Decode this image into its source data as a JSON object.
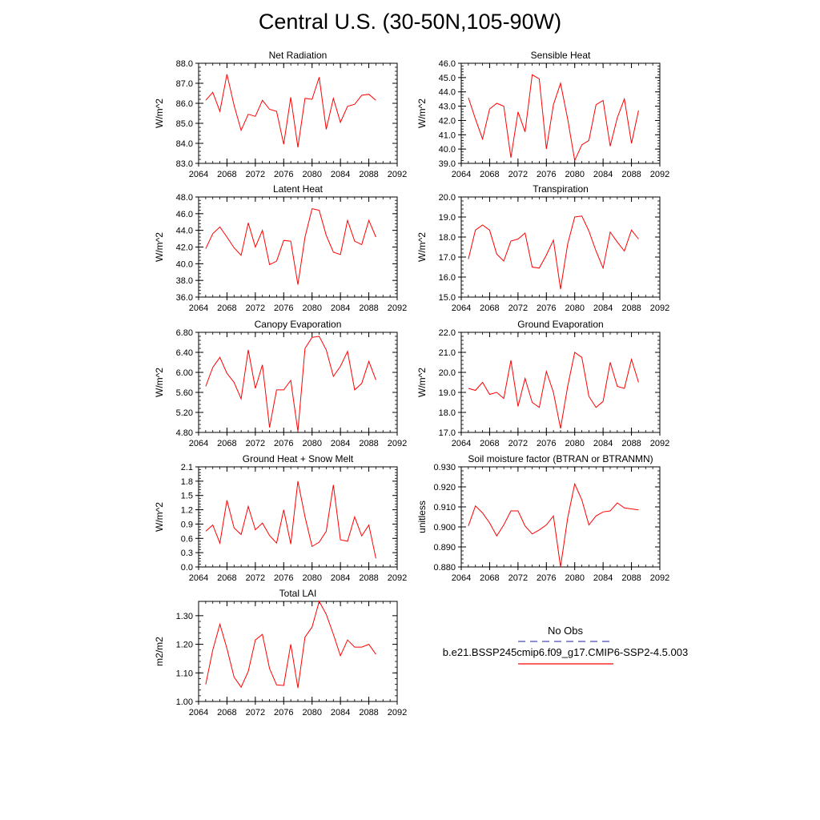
{
  "title": "Central U.S. (30-50N,105-90W)",
  "legend": {
    "items": [
      {
        "label": "No Obs",
        "color": "#4b4bb4",
        "dash": true
      },
      {
        "label": "b.e21.BSSP245cmip6.f09_g17.CMIP6-SSP2-4.5.003",
        "color": "#ff0000",
        "dash": false
      }
    ]
  },
  "chart_data": [
    {
      "type": "line",
      "title": "Net Radiation",
      "ylabel": "W/m^2",
      "xlim": [
        2064,
        2092
      ],
      "ylim": [
        83.0,
        88.0
      ],
      "yticks": [
        83.0,
        84.0,
        85.0,
        86.0,
        87.0,
        88.0
      ],
      "ytick_labels": [
        "83.0",
        "84.0",
        "85.0",
        "86.0",
        "87.0",
        "88.0"
      ],
      "xticks": [
        2064,
        2068,
        2072,
        2076,
        2080,
        2084,
        2088,
        2092
      ],
      "x": [
        2065,
        2066,
        2067,
        2068,
        2069,
        2070,
        2071,
        2072,
        2073,
        2074,
        2075,
        2076,
        2077,
        2078,
        2079,
        2080,
        2081,
        2082,
        2083,
        2084,
        2085,
        2086,
        2087,
        2088,
        2089
      ],
      "series": [
        {
          "values": [
            86.15,
            86.55,
            85.6,
            87.45,
            85.9,
            84.65,
            85.45,
            85.35,
            86.15,
            85.7,
            85.6,
            83.95,
            86.3,
            83.8,
            86.25,
            86.2,
            87.3,
            84.7,
            86.25,
            85.05,
            85.85,
            85.95,
            86.4,
            86.45,
            86.15
          ],
          "color": "#ff0000"
        }
      ]
    },
    {
      "type": "line",
      "title": "Sensible Heat",
      "ylabel": "W/m^2",
      "xlim": [
        2064,
        2092
      ],
      "ylim": [
        39.0,
        46.0
      ],
      "yticks": [
        39.0,
        40.0,
        41.0,
        42.0,
        43.0,
        44.0,
        45.0,
        46.0
      ],
      "ytick_labels": [
        "39.0",
        "40.0",
        "41.0",
        "42.0",
        "43.0",
        "44.0",
        "45.0",
        "46.0"
      ],
      "xticks": [
        2064,
        2068,
        2072,
        2076,
        2080,
        2084,
        2088,
        2092
      ],
      "x": [
        2065,
        2066,
        2067,
        2068,
        2069,
        2070,
        2071,
        2072,
        2073,
        2074,
        2075,
        2076,
        2077,
        2078,
        2079,
        2080,
        2081,
        2082,
        2083,
        2084,
        2085,
        2086,
        2087,
        2088,
        2089
      ],
      "series": [
        {
          "values": [
            43.6,
            42.1,
            40.7,
            42.8,
            43.2,
            43.0,
            39.4,
            42.6,
            41.2,
            45.2,
            44.9,
            40.0,
            43.1,
            44.6,
            42.1,
            39.2,
            40.3,
            40.6,
            43.1,
            43.4,
            40.2,
            42.2,
            43.5,
            40.4,
            42.7
          ],
          "color": "#ff0000"
        }
      ]
    },
    {
      "type": "line",
      "title": "Latent Heat",
      "ylabel": "W/m^2",
      "xlim": [
        2064,
        2092
      ],
      "ylim": [
        36.0,
        48.0
      ],
      "yticks": [
        36.0,
        38.0,
        40.0,
        42.0,
        44.0,
        46.0,
        48.0
      ],
      "ytick_labels": [
        "36.0",
        "38.0",
        "40.0",
        "42.0",
        "44.0",
        "46.0",
        "48.0"
      ],
      "xticks": [
        2064,
        2068,
        2072,
        2076,
        2080,
        2084,
        2088,
        2092
      ],
      "x": [
        2065,
        2066,
        2067,
        2068,
        2069,
        2070,
        2071,
        2072,
        2073,
        2074,
        2075,
        2076,
        2077,
        2078,
        2079,
        2080,
        2081,
        2082,
        2083,
        2084,
        2085,
        2086,
        2087,
        2088,
        2089
      ],
      "series": [
        {
          "values": [
            41.8,
            43.6,
            44.4,
            43.2,
            41.9,
            41.0,
            44.9,
            42.0,
            44.0,
            39.9,
            40.3,
            42.8,
            42.7,
            37.5,
            43.2,
            46.6,
            46.4,
            43.4,
            41.4,
            41.1,
            45.2,
            42.7,
            42.3,
            45.2,
            43.2
          ],
          "color": "#ff0000"
        }
      ]
    },
    {
      "type": "line",
      "title": "Transpiration",
      "ylabel": "W/m^2",
      "xlim": [
        2064,
        2092
      ],
      "ylim": [
        15.0,
        20.0
      ],
      "yticks": [
        15.0,
        16.0,
        17.0,
        18.0,
        19.0,
        20.0
      ],
      "ytick_labels": [
        "15.0",
        "16.0",
        "17.0",
        "18.0",
        "19.0",
        "20.0"
      ],
      "xticks": [
        2064,
        2068,
        2072,
        2076,
        2080,
        2084,
        2088,
        2092
      ],
      "x": [
        2065,
        2066,
        2067,
        2068,
        2069,
        2070,
        2071,
        2072,
        2073,
        2074,
        2075,
        2076,
        2077,
        2078,
        2079,
        2080,
        2081,
        2082,
        2083,
        2084,
        2085,
        2086,
        2087,
        2088,
        2089
      ],
      "series": [
        {
          "values": [
            16.9,
            18.35,
            18.6,
            18.35,
            17.15,
            16.8,
            17.8,
            17.9,
            18.2,
            16.5,
            16.45,
            17.1,
            17.85,
            15.4,
            17.65,
            19.0,
            19.05,
            18.3,
            17.3,
            16.45,
            18.25,
            17.75,
            17.3,
            18.35,
            17.9
          ],
          "color": "#ff0000"
        }
      ]
    },
    {
      "type": "line",
      "title": "Canopy Evaporation",
      "ylabel": "W/m^2",
      "xlim": [
        2064,
        2092
      ],
      "ylim": [
        4.8,
        6.8
      ],
      "yticks": [
        4.8,
        5.2,
        5.6,
        6.0,
        6.4,
        6.8
      ],
      "ytick_labels": [
        "4.80",
        "5.20",
        "5.60",
        "6.00",
        "6.40",
        "6.80"
      ],
      "xticks": [
        2064,
        2068,
        2072,
        2076,
        2080,
        2084,
        2088,
        2092
      ],
      "x": [
        2065,
        2066,
        2067,
        2068,
        2069,
        2070,
        2071,
        2072,
        2073,
        2074,
        2075,
        2076,
        2077,
        2078,
        2079,
        2080,
        2081,
        2082,
        2083,
        2084,
        2085,
        2086,
        2087,
        2088,
        2089
      ],
      "series": [
        {
          "values": [
            5.72,
            6.1,
            6.3,
            5.98,
            5.8,
            5.47,
            6.45,
            5.68,
            6.15,
            4.9,
            5.65,
            5.65,
            5.84,
            4.82,
            6.48,
            6.7,
            6.72,
            6.45,
            5.92,
            6.12,
            6.42,
            5.65,
            5.78,
            6.22,
            5.85
          ],
          "color": "#ff0000"
        }
      ]
    },
    {
      "type": "line",
      "title": "Ground Evaporation",
      "ylabel": "W/m^2",
      "xlim": [
        2064,
        2092
      ],
      "ylim": [
        17.0,
        22.0
      ],
      "yticks": [
        17.0,
        18.0,
        19.0,
        20.0,
        21.0,
        22.0
      ],
      "ytick_labels": [
        "17.0",
        "18.0",
        "19.0",
        "20.0",
        "21.0",
        "22.0"
      ],
      "xticks": [
        2064,
        2068,
        2072,
        2076,
        2080,
        2084,
        2088,
        2092
      ],
      "x": [
        2065,
        2066,
        2067,
        2068,
        2069,
        2070,
        2071,
        2072,
        2073,
        2074,
        2075,
        2076,
        2077,
        2078,
        2079,
        2080,
        2081,
        2082,
        2083,
        2084,
        2085,
        2086,
        2087,
        2088,
        2089
      ],
      "series": [
        {
          "values": [
            19.2,
            19.1,
            19.5,
            18.9,
            19.0,
            18.7,
            20.6,
            18.3,
            19.7,
            18.5,
            18.25,
            20.05,
            19.0,
            17.2,
            19.3,
            21.0,
            20.75,
            18.8,
            18.25,
            18.55,
            20.5,
            19.3,
            19.2,
            20.65,
            19.5
          ],
          "color": "#ff0000"
        }
      ]
    },
    {
      "type": "line",
      "title": "Ground Heat + Snow Melt",
      "ylabel": "W/m^2",
      "xlim": [
        2064,
        2092
      ],
      "ylim": [
        0.0,
        2.1
      ],
      "yticks": [
        0.0,
        0.3,
        0.6,
        0.9,
        1.2,
        1.5,
        1.8,
        2.1
      ],
      "ytick_labels": [
        "0.0",
        "0.3",
        "0.6",
        "0.9",
        "1.2",
        "1.5",
        "1.8",
        "2.1"
      ],
      "xticks": [
        2064,
        2068,
        2072,
        2076,
        2080,
        2084,
        2088,
        2092
      ],
      "x": [
        2065,
        2066,
        2067,
        2068,
        2069,
        2070,
        2071,
        2072,
        2073,
        2074,
        2075,
        2076,
        2077,
        2078,
        2079,
        2080,
        2081,
        2082,
        2083,
        2084,
        2085,
        2086,
        2087,
        2088,
        2089
      ],
      "series": [
        {
          "values": [
            0.75,
            0.88,
            0.5,
            1.4,
            0.82,
            0.68,
            1.27,
            0.78,
            0.92,
            0.66,
            0.5,
            1.2,
            0.48,
            1.8,
            1.05,
            0.43,
            0.52,
            0.75,
            1.72,
            0.57,
            0.54,
            1.05,
            0.65,
            0.88,
            0.18
          ],
          "color": "#ff0000"
        }
      ]
    },
    {
      "type": "line",
      "title": "Soil moisture factor (BTRAN or BTRANMN)",
      "ylabel": "unitless",
      "xlim": [
        2064,
        2092
      ],
      "ylim": [
        0.88,
        0.93
      ],
      "yticks": [
        0.88,
        0.89,
        0.9,
        0.91,
        0.92,
        0.93
      ],
      "ytick_labels": [
        "0.880",
        "0.890",
        "0.900",
        "0.910",
        "0.920",
        "0.930"
      ],
      "xticks": [
        2064,
        2068,
        2072,
        2076,
        2080,
        2084,
        2088,
        2092
      ],
      "x": [
        2065,
        2066,
        2067,
        2068,
        2069,
        2070,
        2071,
        2072,
        2073,
        2074,
        2075,
        2076,
        2077,
        2078,
        2079,
        2080,
        2081,
        2082,
        2083,
        2084,
        2085,
        2086,
        2087,
        2088,
        2089
      ],
      "series": [
        {
          "values": [
            0.9005,
            0.9105,
            0.907,
            0.902,
            0.8955,
            0.901,
            0.908,
            0.908,
            0.9005,
            0.8965,
            0.8985,
            0.901,
            0.9055,
            0.88,
            0.9045,
            0.9215,
            0.9135,
            0.901,
            0.9055,
            0.9075,
            0.908,
            0.912,
            0.9095,
            0.909,
            0.9085
          ],
          "color": "#ff0000"
        }
      ]
    },
    {
      "type": "line",
      "title": "Total LAI",
      "ylabel": "m2/m2",
      "xlim": [
        2064,
        2092
      ],
      "ylim": [
        1.0,
        1.35
      ],
      "yticks": [
        1.0,
        1.1,
        1.2,
        1.3
      ],
      "ytick_labels": [
        "1.00",
        "1.10",
        "1.20",
        "1.30"
      ],
      "xticks": [
        2064,
        2068,
        2072,
        2076,
        2080,
        2084,
        2088,
        2092
      ],
      "x": [
        2065,
        2066,
        2067,
        2068,
        2069,
        2070,
        2071,
        2072,
        2073,
        2074,
        2075,
        2076,
        2077,
        2078,
        2079,
        2080,
        2081,
        2082,
        2083,
        2084,
        2085,
        2086,
        2087,
        2088,
        2089
      ],
      "series": [
        {
          "values": [
            1.06,
            1.18,
            1.27,
            1.185,
            1.085,
            1.05,
            1.105,
            1.215,
            1.235,
            1.115,
            1.058,
            1.056,
            1.2,
            1.047,
            1.225,
            1.26,
            1.35,
            1.305,
            1.235,
            1.16,
            1.215,
            1.19,
            1.19,
            1.2,
            1.165
          ],
          "color": "#ff0000"
        }
      ]
    }
  ]
}
